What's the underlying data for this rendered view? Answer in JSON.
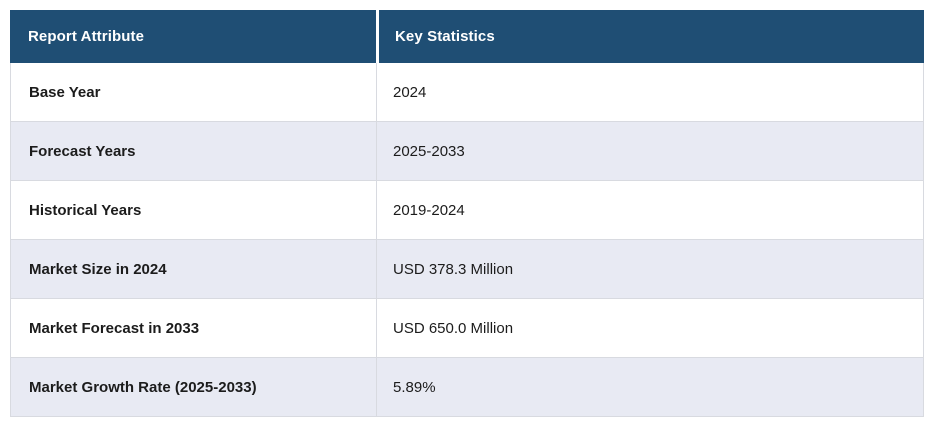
{
  "table": {
    "headers": {
      "attribute": "Report Attribute",
      "value": "Key Statistics"
    },
    "rows": [
      {
        "attribute": "Base Year",
        "value": "2024"
      },
      {
        "attribute": "Forecast Years",
        "value": "2025-2033"
      },
      {
        "attribute": "Historical Years",
        "value": "2019-2024"
      },
      {
        "attribute": "Market Size in 2024",
        "value": "USD 378.3 Million"
      },
      {
        "attribute": "Market Forecast in 2033",
        "value": "USD 650.0 Million"
      },
      {
        "attribute": "Market Growth Rate (2025-2033)",
        "value": "5.89%"
      }
    ],
    "colors": {
      "header_bg": "#1f4e74",
      "header_text": "#ffffff",
      "stripe_bg": "#e8eaf3",
      "row_bg": "#ffffff",
      "border": "#d8dae0",
      "body_text": "#1c1c1c"
    }
  },
  "chart_data": {
    "type": "table",
    "columns": [
      "Report Attribute",
      "Key Statistics"
    ],
    "rows": [
      [
        "Base Year",
        "2024"
      ],
      [
        "Forecast Years",
        "2025-2033"
      ],
      [
        "Historical Years",
        "2019-2024"
      ],
      [
        "Market Size in 2024",
        "USD 378.3 Million"
      ],
      [
        "Market Forecast in 2033",
        "USD 650.0 Million"
      ],
      [
        "Market Growth Rate (2025-2033)",
        "5.89%"
      ]
    ],
    "title": "",
    "notes": "Market report key statistics summary table; base year 2024, forecast 2025-2033, historical 2019-2024, market size USD 378.3 Million (2024), forecast USD 650.0 Million (2033), CAGR 5.89%"
  }
}
